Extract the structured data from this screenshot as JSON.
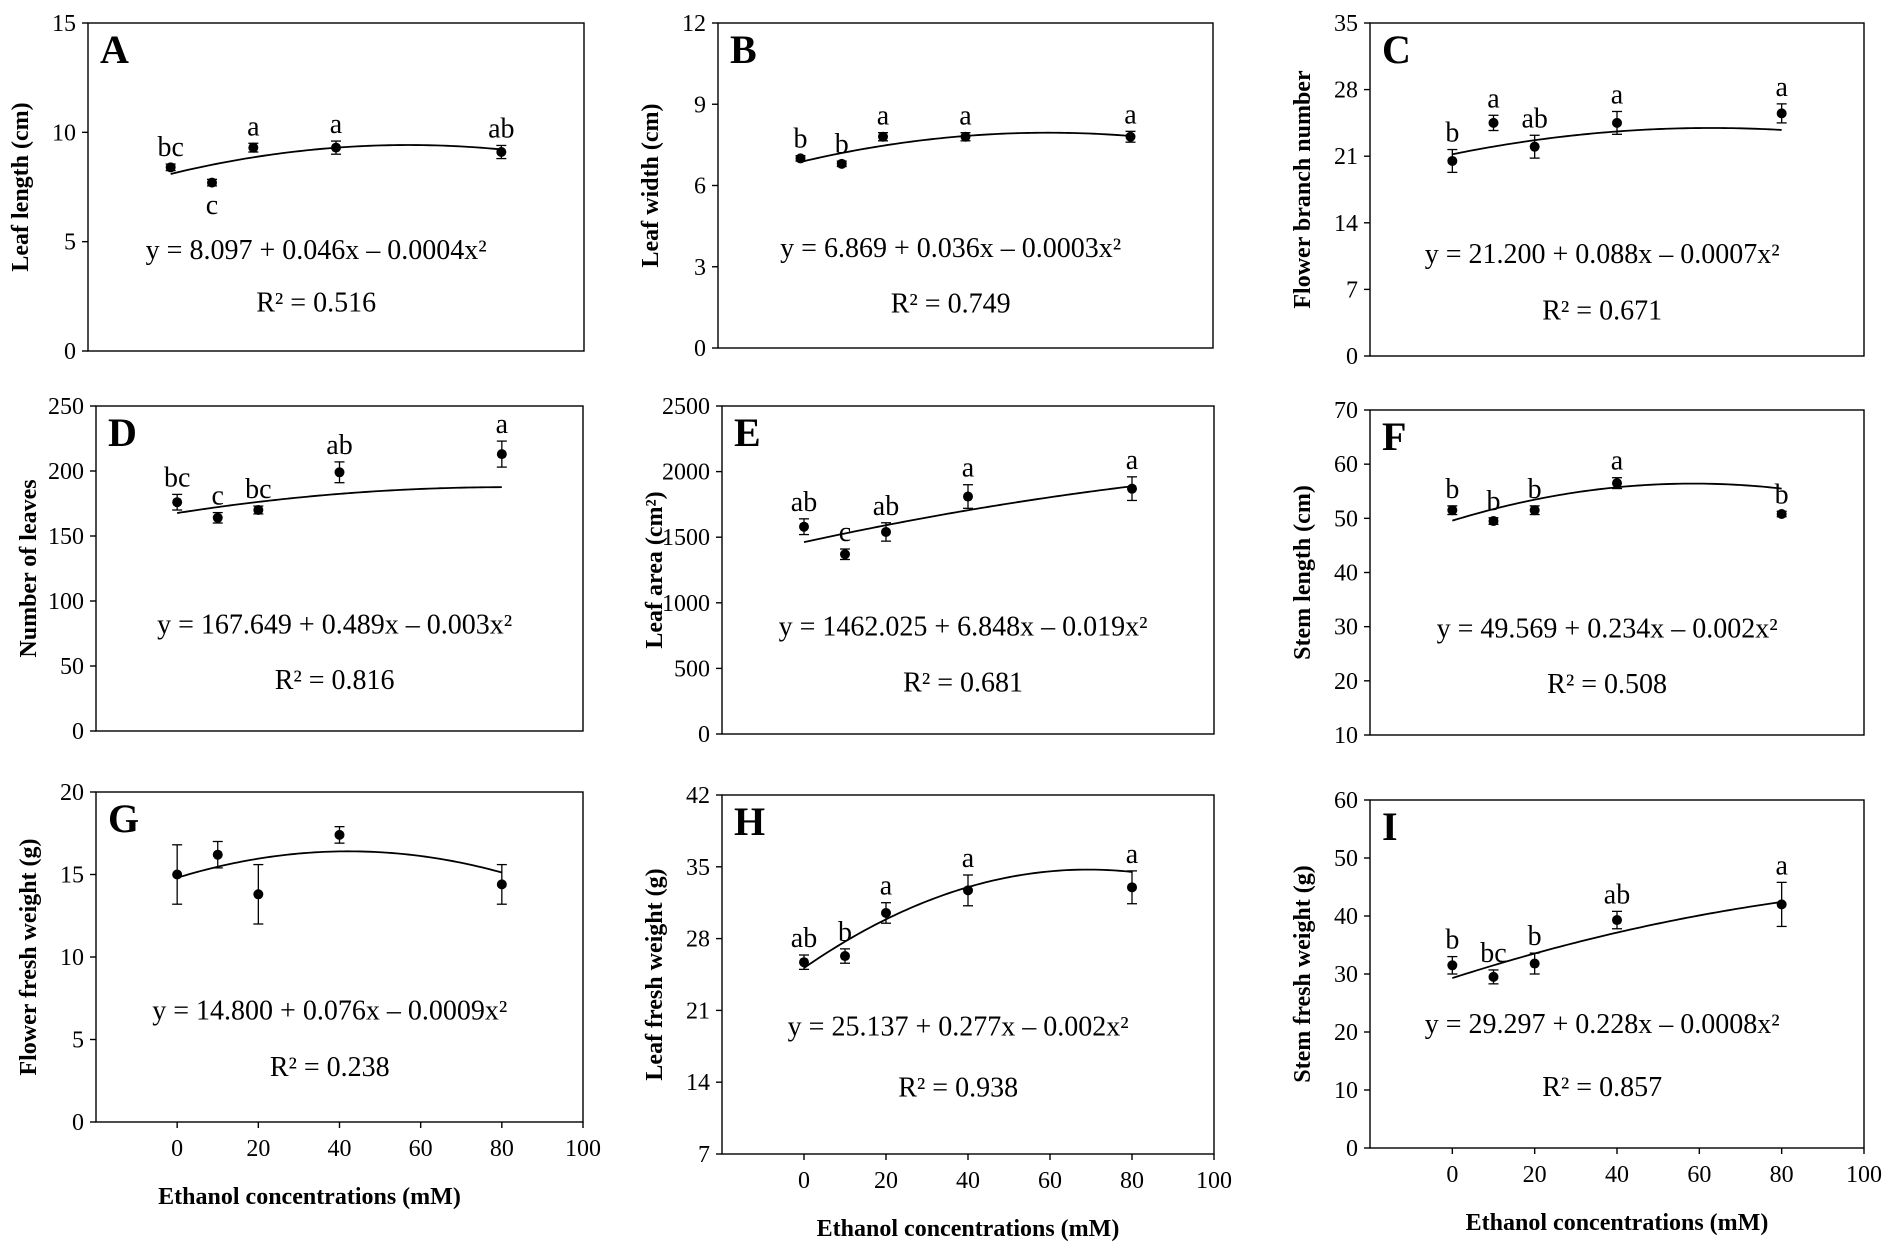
{
  "chart_data": [
    {
      "panel": "A",
      "type": "scatter",
      "ylabel": "Leaf length (cm)",
      "xlabel": "",
      "ylim": [
        0,
        15
      ],
      "yticks": [
        0,
        5,
        10,
        15
      ],
      "xlim": [
        -20,
        100
      ],
      "xticks": [],
      "x": [
        0,
        10,
        20,
        40,
        80
      ],
      "y": [
        8.4,
        7.7,
        9.3,
        9.3,
        9.1
      ],
      "err": [
        0.15,
        0.15,
        0.2,
        0.3,
        0.3
      ],
      "letters": [
        "bc",
        "c",
        "a",
        "a",
        "ab"
      ],
      "fit": {
        "a": 8.097,
        "b": 0.046,
        "c": -0.0004
      },
      "equation": "y = 8.097 + 0.046x – 0.0004x²",
      "r2": "R² = 0.516"
    },
    {
      "panel": "B",
      "type": "scatter",
      "ylabel": "Leaf width (cm)",
      "xlabel": "",
      "ylim": [
        0,
        12
      ],
      "yticks": [
        0,
        3,
        6,
        9,
        12
      ],
      "xlim": [
        -20,
        100
      ],
      "xticks": [],
      "x": [
        0,
        10,
        20,
        40,
        80
      ],
      "y": [
        7.0,
        6.8,
        7.8,
        7.8,
        7.8
      ],
      "err": [
        0.1,
        0.1,
        0.15,
        0.15,
        0.2
      ],
      "letters": [
        "b",
        "b",
        "a",
        "a",
        "a"
      ],
      "fit": {
        "a": 6.869,
        "b": 0.036,
        "c": -0.0003
      },
      "equation": "y = 6.869 + 0.036x – 0.0003x²",
      "r2": "R² = 0.749"
    },
    {
      "panel": "C",
      "type": "scatter",
      "ylabel": "Flower branch number",
      "xlabel": "",
      "ylim": [
        0,
        35
      ],
      "yticks": [
        0,
        7,
        14,
        21,
        28,
        35
      ],
      "xlim": [
        -20,
        100
      ],
      "xticks": [],
      "x": [
        0,
        10,
        20,
        40,
        80
      ],
      "y": [
        20.5,
        24.5,
        22.0,
        24.5,
        25.5
      ],
      "err": [
        1.2,
        0.8,
        1.2,
        1.2,
        1.0
      ],
      "letters": [
        "b",
        "a",
        "ab",
        "a",
        "a"
      ],
      "fit": {
        "a": 21.2,
        "b": 0.088,
        "c": -0.0007
      },
      "equation": "y = 21.200 + 0.088x – 0.0007x²",
      "r2": "R² = 0.671"
    },
    {
      "panel": "D",
      "type": "scatter",
      "ylabel": "Number of leaves",
      "xlabel": "",
      "ylim": [
        0,
        250
      ],
      "yticks": [
        0,
        50,
        100,
        150,
        200,
        250
      ],
      "xlim": [
        -20,
        100
      ],
      "xticks": [],
      "x": [
        0,
        10,
        20,
        40,
        80
      ],
      "y": [
        176,
        164,
        170,
        199,
        213
      ],
      "err": [
        6,
        4,
        3,
        8,
        10
      ],
      "letters": [
        "bc",
        "c",
        "bc",
        "ab",
        "a"
      ],
      "fit": {
        "a": 167.649,
        "b": 0.489,
        "c": -0.003
      },
      "equation": "y = 167.649 + 0.489x – 0.003x²",
      "r2": "R² = 0.816"
    },
    {
      "panel": "E",
      "type": "scatter",
      "ylabel": "Leaf area (cm²)",
      "xlabel": "",
      "ylim": [
        0,
        2500
      ],
      "yticks": [
        0,
        500,
        1000,
        1500,
        2000,
        2500
      ],
      "xlim": [
        -20,
        100
      ],
      "xticks": [],
      "x": [
        0,
        10,
        20,
        40,
        80
      ],
      "y": [
        1580,
        1370,
        1540,
        1810,
        1870
      ],
      "err": [
        60,
        40,
        70,
        90,
        90
      ],
      "letters": [
        "ab",
        "c",
        "ab",
        "a",
        "a"
      ],
      "fit": {
        "a": 1462.025,
        "b": 6.848,
        "c": -0.019
      },
      "equation": "y = 1462.025 + 6.848x – 0.019x²",
      "r2": "R² = 0.681"
    },
    {
      "panel": "F",
      "type": "scatter",
      "ylabel": "Stem length (cm)",
      "xlabel": "",
      "ylim": [
        10,
        70
      ],
      "yticks": [
        10,
        20,
        30,
        40,
        50,
        60,
        70
      ],
      "xlim": [
        -20,
        100
      ],
      "xticks": [],
      "x": [
        0,
        10,
        20,
        40,
        80
      ],
      "y": [
        51.5,
        49.5,
        51.5,
        56.5,
        50.8
      ],
      "err": [
        0.8,
        0.6,
        0.8,
        1.0,
        0.5
      ],
      "letters": [
        "b",
        "b",
        "b",
        "a",
        "b"
      ],
      "fit": {
        "a": 49.569,
        "b": 0.234,
        "c": -0.002
      },
      "equation": "y = 49.569 + 0.234x – 0.002x²",
      "r2": "R² = 0.508"
    },
    {
      "panel": "G",
      "type": "scatter",
      "ylabel": "Flower fresh weight (g)",
      "xlabel": "Ethanol concentrations (mM)",
      "ylim": [
        0,
        20
      ],
      "yticks": [
        0,
        5,
        10,
        15,
        20
      ],
      "xlim": [
        -20,
        100
      ],
      "xticks": [
        0,
        20,
        40,
        60,
        80,
        100
      ],
      "x": [
        0,
        10,
        20,
        40,
        80
      ],
      "y": [
        15.0,
        16.2,
        13.8,
        17.4,
        14.4
      ],
      "err": [
        1.8,
        0.8,
        1.8,
        0.5,
        1.2
      ],
      "letters": [
        "",
        "",
        "",
        "",
        ""
      ],
      "fit": {
        "a": 14.8,
        "b": 0.076,
        "c": -0.0009
      },
      "equation": "y = 14.800 + 0.076x – 0.0009x²",
      "r2": "R² = 0.238"
    },
    {
      "panel": "H",
      "type": "scatter",
      "ylabel": "Leaf fresh weight (g)",
      "xlabel": "Ethanol concentrations (mM)",
      "ylim": [
        7,
        42
      ],
      "yticks": [
        7,
        14,
        21,
        28,
        35,
        42
      ],
      "xlim": [
        -20,
        100
      ],
      "xticks": [
        0,
        20,
        40,
        60,
        80,
        100
      ],
      "x": [
        0,
        10,
        20,
        40,
        80
      ],
      "y": [
        25.7,
        26.3,
        30.5,
        32.7,
        33.0
      ],
      "err": [
        0.7,
        0.7,
        1.0,
        1.5,
        1.6
      ],
      "letters": [
        "ab",
        "b",
        "a",
        "a",
        "a"
      ],
      "fit": {
        "a": 25.137,
        "b": 0.277,
        "c": -0.002
      },
      "equation": "y = 25.137 + 0.277x – 0.002x²",
      "r2": "R² = 0.938"
    },
    {
      "panel": "I",
      "type": "scatter",
      "ylabel": "Stem fresh weight (g)",
      "xlabel": "Ethanol concentrations (mM)",
      "ylim": [
        0,
        60
      ],
      "yticks": [
        0,
        10,
        20,
        30,
        40,
        50,
        60
      ],
      "xlim": [
        -20,
        100
      ],
      "xticks": [
        0,
        20,
        40,
        60,
        80,
        100
      ],
      "x": [
        0,
        10,
        20,
        40,
        80
      ],
      "y": [
        31.5,
        29.5,
        31.8,
        39.3,
        42.0
      ],
      "err": [
        1.5,
        1.2,
        1.8,
        1.5,
        3.8
      ],
      "letters": [
        "b",
        "bc",
        "b",
        "ab",
        "a"
      ],
      "fit": {
        "a": 29.297,
        "b": 0.228,
        "c": -0.0008
      },
      "equation": "y = 29.297 + 0.228x – 0.0008x²",
      "r2": "R² = 0.857"
    }
  ]
}
